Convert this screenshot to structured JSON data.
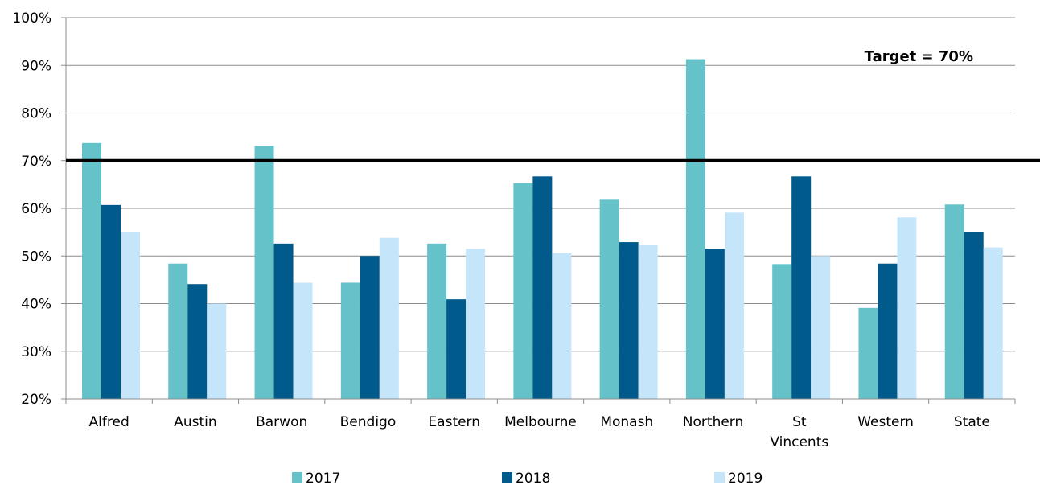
{
  "chart_data": {
    "type": "bar",
    "categories": [
      "Alfred",
      "Austin",
      "Barwon",
      "Bendigo",
      "Eastern",
      "Melbourne",
      "Monash",
      "Northern",
      "St Vincents",
      "Western",
      "State"
    ],
    "category_lines": [
      [
        "Alfred"
      ],
      [
        "Austin"
      ],
      [
        "Barwon"
      ],
      [
        "Bendigo"
      ],
      [
        "Eastern"
      ],
      [
        "Melbourne"
      ],
      [
        "Monash"
      ],
      [
        "Northern"
      ],
      [
        "St",
        "Vincents"
      ],
      [
        "Western"
      ],
      [
        "State"
      ]
    ],
    "series": [
      {
        "name": "2017",
        "color": "#66C2C9",
        "values": [
          73.7,
          48.4,
          73.1,
          44.4,
          52.6,
          65.3,
          61.8,
          91.3,
          48.3,
          39.1,
          60.8
        ]
      },
      {
        "name": "2018",
        "color": "#005A8C",
        "values": [
          60.7,
          44.1,
          52.6,
          50.0,
          40.9,
          66.7,
          52.9,
          51.5,
          66.7,
          48.4,
          55.1
        ]
      },
      {
        "name": "2019",
        "color": "#C5E6FA",
        "values": [
          55.1,
          40.0,
          44.4,
          53.8,
          51.5,
          50.6,
          52.4,
          59.1,
          50.0,
          58.1,
          51.8
        ]
      }
    ],
    "ylim": [
      20,
      100
    ],
    "yticks": [
      20,
      30,
      40,
      50,
      60,
      70,
      80,
      90,
      100
    ],
    "ytick_labels": [
      "20%",
      "30%",
      "40%",
      "50%",
      "60%",
      "70%",
      "80%",
      "90%",
      "100%"
    ],
    "grid": true,
    "legend_position": "bottom",
    "target": {
      "value": 70,
      "label": "Target  = 70%"
    },
    "title": "",
    "xlabel": "",
    "ylabel": ""
  }
}
